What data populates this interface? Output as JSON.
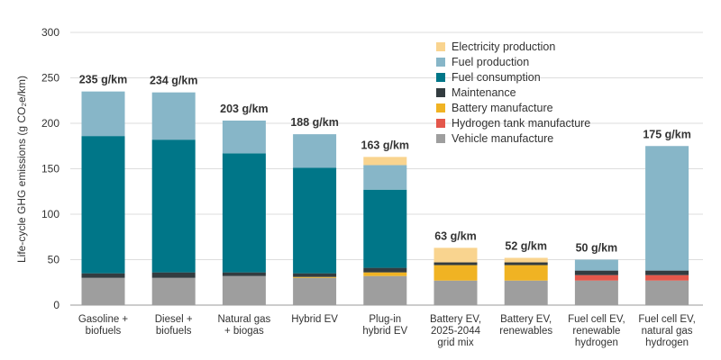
{
  "chart_data": {
    "type": "bar",
    "stacked": true,
    "ylabel": "Life-cycle GHG emissions (g CO₂e/km)",
    "ylim": [
      0,
      300
    ],
    "yticks": [
      0,
      50,
      100,
      150,
      200,
      250,
      300
    ],
    "grid": true,
    "legend_position": "top-right",
    "categories": [
      [
        "Gasoline +",
        "biofuels"
      ],
      [
        "Diesel +",
        "biofuels"
      ],
      [
        "Natural gas",
        "+ biogas"
      ],
      [
        "Hybrid EV"
      ],
      [
        "Plug-in",
        "hybrid EV"
      ],
      [
        "Battery EV,",
        "2025-2044",
        "grid mix"
      ],
      [
        "Battery EV,",
        "renewables"
      ],
      [
        "Fuel cell EV,",
        "renewable",
        "hydrogen"
      ],
      [
        "Fuel cell EV,",
        "natural gas",
        "hydrogen"
      ]
    ],
    "totals": [
      "235 g/km",
      "234 g/km",
      "203 g/km",
      "188 g/km",
      "163 g/km",
      "63 g/km",
      "52 g/km",
      "50 g/km",
      "175 g/km"
    ],
    "series": [
      {
        "name": "Vehicle manufacture",
        "color": "#9e9e9e",
        "values": [
          30,
          30,
          32,
          30,
          32,
          27,
          27,
          27,
          27
        ]
      },
      {
        "name": "Hydrogen tank manufacture",
        "color": "#e4574b",
        "values": [
          0,
          0,
          0,
          0,
          0,
          0,
          0,
          6,
          6
        ]
      },
      {
        "name": "Battery manufacture",
        "color": "#f0b323",
        "values": [
          0,
          0,
          0,
          1,
          4,
          17,
          17,
          0,
          0
        ]
      },
      {
        "name": "Maintenance",
        "color": "#333c40",
        "values": [
          5,
          6,
          4,
          4,
          5,
          3,
          3,
          5,
          5
        ]
      },
      {
        "name": "Fuel consumption",
        "color": "#007688",
        "values": [
          151,
          146,
          131,
          116,
          86,
          0,
          0,
          0,
          0
        ]
      },
      {
        "name": "Fuel production",
        "color": "#87b6c8",
        "values": [
          49,
          52,
          36,
          37,
          27,
          0,
          0,
          12,
          137
        ]
      },
      {
        "name": "Electricity production",
        "color": "#f9d48f",
        "values": [
          0,
          0,
          0,
          0,
          9,
          16,
          5,
          0,
          0
        ]
      }
    ]
  }
}
